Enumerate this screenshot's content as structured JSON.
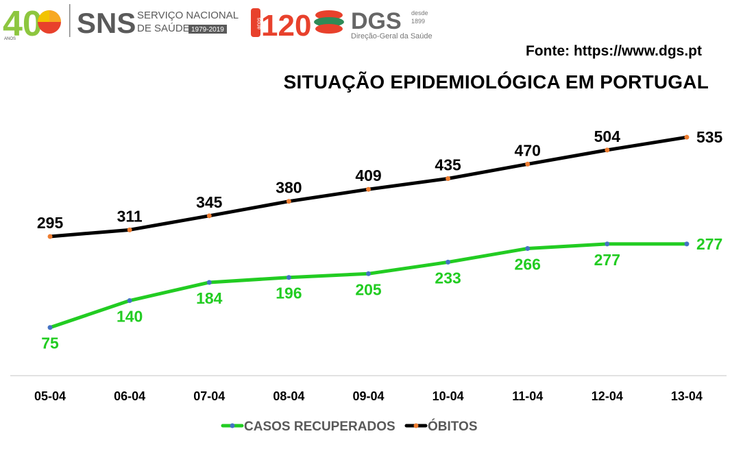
{
  "header": {
    "logo_40": "40",
    "logo_40_sub": "ANOS",
    "sns_title": "SNS",
    "sns_line1": "SERVIÇO NACIONAL",
    "sns_line2": "DE SAÚDE",
    "sns_years": "1979-2019",
    "logo_120": "120",
    "logo_120_sub": "anos",
    "dgs_title": "DGS",
    "dgs_since": "desde",
    "dgs_year": "1899",
    "dgs_name": "Direção-Geral da Saúde"
  },
  "source_label": "Fonte: https://www.dgs.pt",
  "colors": {
    "recovered": "#22CC22",
    "deaths": "#000000",
    "recovered_marker": "#4472C4",
    "deaths_marker": "#ED7D31"
  },
  "chart_data": {
    "type": "line",
    "title": "SITUAÇÃO EPIDEMIOLÓGICA EM PORTUGAL",
    "categories": [
      "05-04",
      "06-04",
      "07-04",
      "08-04",
      "09-04",
      "10-04",
      "11-04",
      "12-04",
      "13-04"
    ],
    "series": [
      {
        "name": "CASOS RECUPERADOS",
        "values": [
          75,
          140,
          184,
          196,
          205,
          233,
          266,
          277,
          277
        ]
      },
      {
        "name": "ÓBITOS",
        "values": [
          295,
          311,
          345,
          380,
          409,
          435,
          470,
          504,
          535
        ]
      }
    ],
    "xlabel": "",
    "ylabel": "",
    "ylim": [
      0,
      560
    ],
    "grid": false,
    "legend": "bottom"
  }
}
